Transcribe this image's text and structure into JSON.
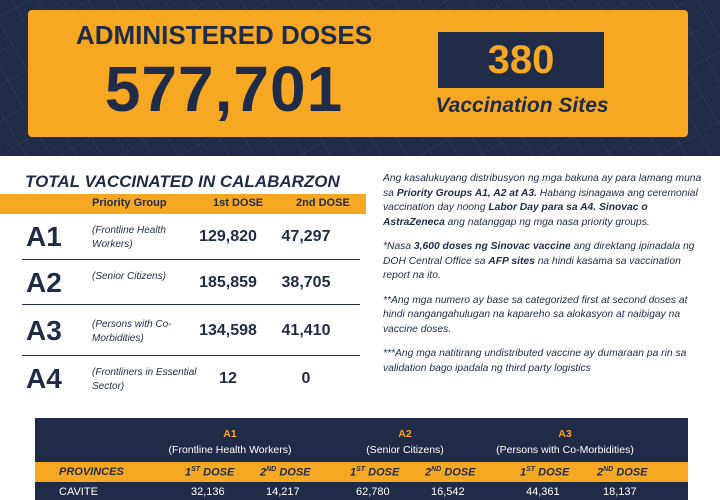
{
  "header": {
    "title": "ADMINISTERED DOSES",
    "total": "577,701",
    "sites_count": "380",
    "sites_label": "Vaccination Sites"
  },
  "summary": {
    "title": "TOTAL VACCINATED IN CALABARZON",
    "columns": [
      "Priority Group",
      "1st DOSE",
      "2nd DOSE"
    ],
    "rows": [
      [
        "A1",
        "(Frontline Health Workers)",
        "129,820",
        "47,297"
      ],
      [
        "A2",
        "(Senior Citizens)",
        "185,859",
        "38,705"
      ],
      [
        "A3",
        "(Persons with Co-Morbidities)",
        "134,598",
        "41,410"
      ],
      [
        "A4",
        "(Frontliners in Essential Sector)",
        "12",
        "0"
      ]
    ]
  },
  "notes": [
    [
      {
        "text": "Ang kasalukuyang distribusyon ng mga bakuna ay para lamang muna sa ",
        "bold": false
      },
      {
        "text": "Priority Groups A1, A2 at A3.",
        "bold": true
      },
      {
        "text": " Habang isinagawa ang ceremonial vaccination day noong ",
        "bold": false
      },
      {
        "text": "Labor Day para sa A4. Sinovac o AstraZeneca",
        "bold": true
      },
      {
        "text": " ang natanggap ng mga nasa priority groups.",
        "bold": false
      }
    ],
    [
      {
        "text": "*Nasa ",
        "bold": false
      },
      {
        "text": "3,600 doses ng Sinovac vaccine",
        "bold": true
      },
      {
        "text": " ang direktang ipinadala ng DOH Central Office sa ",
        "bold": false
      },
      {
        "text": "AFP sites",
        "bold": true
      },
      {
        "text": " na hindi kasama sa vaccination report na ito.",
        "bold": false
      }
    ],
    [
      {
        "text": "**Ang mga numero ay base sa categorized first at second doses at hindi nangangahulugan na kapareho sa alokasyon at naibigay na vaccine doses.",
        "bold": false
      }
    ],
    [
      {
        "text": "***Ang mga natitirang undistributed vaccine ay dumaraan pa rin sa validation bago ipadala ng third party logistics",
        "bold": false
      }
    ]
  ],
  "provinces_table": {
    "groups": [
      {
        "code": "A1",
        "name": "(Frontline Health Workers)"
      },
      {
        "code": "A2",
        "name": "(Senior Citizens)"
      },
      {
        "code": "A3",
        "name": "(Persons with Co-Morbidities)"
      }
    ],
    "first_col": "PROVINCES",
    "dose_headers": [
      {
        "num": "1",
        "suffix": "ST",
        "word": "DOSE"
      },
      {
        "num": "2",
        "suffix": "ND",
        "word": "DOSE"
      }
    ],
    "rows": [
      [
        "CAVITE",
        "32,136",
        "14,217",
        "62,780",
        "16,542",
        "44,361",
        "18,137"
      ]
    ]
  }
}
